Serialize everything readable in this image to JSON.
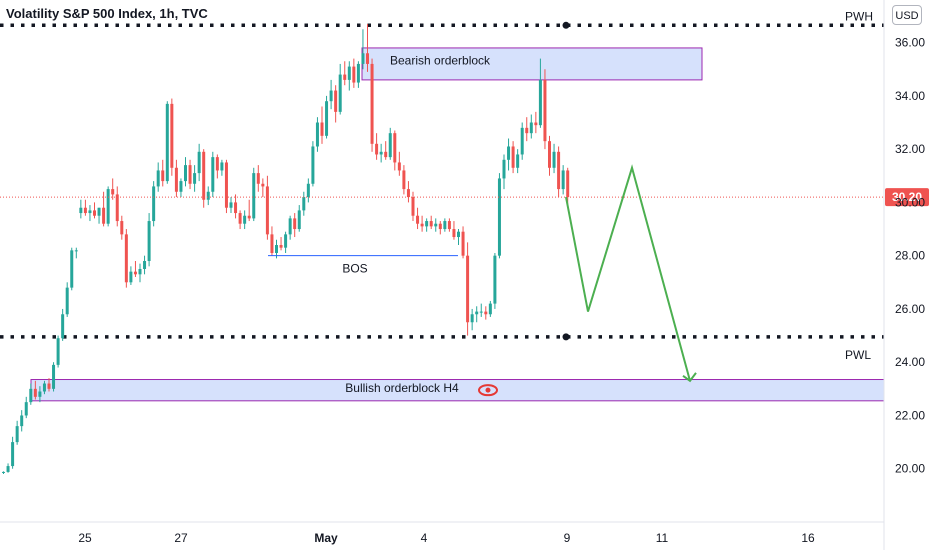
{
  "header": {
    "title": "Volatility S&P 500 Index, 1h, TVC",
    "currency": "USD"
  },
  "chart_data": {
    "type": "candlestick",
    "ylim": [
      18.0,
      37.6
    ],
    "y_ticks": [
      "20.00",
      "22.00",
      "24.00",
      "26.00",
      "28.00",
      "30.00",
      "32.00",
      "34.00",
      "36.00"
    ],
    "x_ticks": [
      {
        "label": "25",
        "bold": false
      },
      {
        "label": "27",
        "bold": false
      },
      {
        "label": "May",
        "bold": true
      },
      {
        "label": "4",
        "bold": false
      },
      {
        "label": "9",
        "bold": false
      },
      {
        "label": "11",
        "bold": false
      },
      {
        "label": "16",
        "bold": false
      }
    ],
    "last_price": 30.2,
    "last_price_label": "30.20",
    "levels": [
      {
        "label": "PWH",
        "value": 36.65
      },
      {
        "label": "PWL",
        "value": 24.95
      }
    ],
    "zones": [
      {
        "label": "Bearish orderblock",
        "top": 35.8,
        "bottom": 34.6
      },
      {
        "label": "Bullish orderblock H4",
        "top": 23.35,
        "bottom": 22.55
      }
    ],
    "bos": {
      "label": "BOS",
      "value": 28.0
    },
    "projection": [
      30.2,
      25.9,
      31.3,
      23.3
    ],
    "candles": [
      [
        19.85,
        19.9,
        19.8,
        19.88
      ],
      [
        19.88,
        20.2,
        19.85,
        20.1
      ],
      [
        20.1,
        21.2,
        20.0,
        21.0
      ],
      [
        21.0,
        21.8,
        20.9,
        21.6
      ],
      [
        21.6,
        22.2,
        21.4,
        22.0
      ],
      [
        22.0,
        22.7,
        21.9,
        22.5
      ],
      [
        22.5,
        23.2,
        22.4,
        23.0
      ],
      [
        23.0,
        23.3,
        22.6,
        22.7
      ],
      [
        22.7,
        23.1,
        22.5,
        22.9
      ],
      [
        22.9,
        23.3,
        22.8,
        23.2
      ],
      [
        23.2,
        23.4,
        22.9,
        23.0
      ],
      [
        23.0,
        24.0,
        22.9,
        23.9
      ],
      [
        23.9,
        25.0,
        23.8,
        24.9
      ],
      [
        24.9,
        26.0,
        24.8,
        25.8
      ],
      [
        25.8,
        27.0,
        25.7,
        26.8
      ],
      [
        26.8,
        28.3,
        26.7,
        28.2
      ],
      [
        28.2,
        28.3,
        27.9,
        28.2
      ],
      [
        29.6,
        30.1,
        29.4,
        29.8
      ],
      [
        29.8,
        30.1,
        29.5,
        29.6
      ],
      [
        29.6,
        29.9,
        29.3,
        29.7
      ],
      [
        29.7,
        30.0,
        29.4,
        29.5
      ],
      [
        29.5,
        29.8,
        29.2,
        29.8
      ],
      [
        29.8,
        30.4,
        29.1,
        29.2
      ],
      [
        29.2,
        30.6,
        29.1,
        30.5
      ],
      [
        30.5,
        30.9,
        30.1,
        30.3
      ],
      [
        30.3,
        30.6,
        29.1,
        29.3
      ],
      [
        29.3,
        29.5,
        28.6,
        28.8
      ],
      [
        28.8,
        29.0,
        26.8,
        27.0
      ],
      [
        27.0,
        27.6,
        26.9,
        27.4
      ],
      [
        27.4,
        27.8,
        27.2,
        27.3
      ],
      [
        27.3,
        27.7,
        27.0,
        27.5
      ],
      [
        27.5,
        28.0,
        27.3,
        27.8
      ],
      [
        27.8,
        29.6,
        27.6,
        29.3
      ],
      [
        29.3,
        30.8,
        29.1,
        30.6
      ],
      [
        30.6,
        31.5,
        30.4,
        31.2
      ],
      [
        31.2,
        31.6,
        30.6,
        30.8
      ],
      [
        30.8,
        33.8,
        30.7,
        33.7
      ],
      [
        33.7,
        33.9,
        31.0,
        31.3
      ],
      [
        31.3,
        31.6,
        30.2,
        30.4
      ],
      [
        30.4,
        30.9,
        30.2,
        30.8
      ],
      [
        30.8,
        31.7,
        30.6,
        31.4
      ],
      [
        31.4,
        31.6,
        30.5,
        30.7
      ],
      [
        30.7,
        31.4,
        30.4,
        31.1
      ],
      [
        31.1,
        32.2,
        30.8,
        31.9
      ],
      [
        31.9,
        32.0,
        29.8,
        30.1
      ],
      [
        30.1,
        30.6,
        29.9,
        30.4
      ],
      [
        30.4,
        31.9,
        30.2,
        31.7
      ],
      [
        31.7,
        31.8,
        30.9,
        31.2
      ],
      [
        31.2,
        31.6,
        31.0,
        31.5
      ],
      [
        31.5,
        31.6,
        29.6,
        29.8
      ],
      [
        29.8,
        30.2,
        29.6,
        30.0
      ],
      [
        30.0,
        30.3,
        29.4,
        29.6
      ],
      [
        29.6,
        29.7,
        29.0,
        29.2
      ],
      [
        29.2,
        29.7,
        29.0,
        29.5
      ],
      [
        29.5,
        30.1,
        29.3,
        29.4
      ],
      [
        29.4,
        31.3,
        29.3,
        31.1
      ],
      [
        31.1,
        31.4,
        30.4,
        30.7
      ],
      [
        30.7,
        30.9,
        30.2,
        30.6
      ],
      [
        30.6,
        31.0,
        28.6,
        28.8
      ],
      [
        28.8,
        29.1,
        28.0,
        28.1
      ],
      [
        28.1,
        28.6,
        27.9,
        28.4
      ],
      [
        28.4,
        28.7,
        28.2,
        28.3
      ],
      [
        28.3,
        28.9,
        28.1,
        28.8
      ],
      [
        28.8,
        29.5,
        28.6,
        29.4
      ],
      [
        29.4,
        29.6,
        28.7,
        29.0
      ],
      [
        29.0,
        29.9,
        28.9,
        29.7
      ],
      [
        29.7,
        30.4,
        29.5,
        30.2
      ],
      [
        30.2,
        30.9,
        30.0,
        30.7
      ],
      [
        30.7,
        32.3,
        30.6,
        32.1
      ],
      [
        32.1,
        33.2,
        31.9,
        33.0
      ],
      [
        33.0,
        33.6,
        32.2,
        32.5
      ],
      [
        32.5,
        34.0,
        32.4,
        33.8
      ],
      [
        33.8,
        34.6,
        33.5,
        34.2
      ],
      [
        34.2,
        34.4,
        33.0,
        33.4
      ],
      [
        33.4,
        35.2,
        33.3,
        34.8
      ],
      [
        34.8,
        35.3,
        34.4,
        34.6
      ],
      [
        34.6,
        35.3,
        34.2,
        35.1
      ],
      [
        35.1,
        35.4,
        34.3,
        34.5
      ],
      [
        34.5,
        35.3,
        34.3,
        35.2
      ],
      [
        35.2,
        36.5,
        35.0,
        35.6
      ],
      [
        35.6,
        36.7,
        34.9,
        35.2
      ],
      [
        35.2,
        35.4,
        31.9,
        32.2
      ],
      [
        32.2,
        32.6,
        31.6,
        31.8
      ],
      [
        31.8,
        32.2,
        31.5,
        31.9
      ],
      [
        31.9,
        32.3,
        31.6,
        31.7
      ],
      [
        31.7,
        32.8,
        31.6,
        32.6
      ],
      [
        32.6,
        32.7,
        31.2,
        31.5
      ],
      [
        31.5,
        31.9,
        31.0,
        31.2
      ],
      [
        31.2,
        31.4,
        30.3,
        30.5
      ],
      [
        30.5,
        30.8,
        30.0,
        30.2
      ],
      [
        30.2,
        30.4,
        29.3,
        29.5
      ],
      [
        29.5,
        29.8,
        29.0,
        29.2
      ],
      [
        29.2,
        29.5,
        28.9,
        29.1
      ],
      [
        29.1,
        29.4,
        28.9,
        29.3
      ],
      [
        29.3,
        29.5,
        29.0,
        29.1
      ],
      [
        29.1,
        29.4,
        28.9,
        29.2
      ],
      [
        29.2,
        29.3,
        28.8,
        29.0
      ],
      [
        29.0,
        29.4,
        28.9,
        29.3
      ],
      [
        29.3,
        29.4,
        28.9,
        29.0
      ],
      [
        29.0,
        29.3,
        28.6,
        28.7
      ],
      [
        28.7,
        29.0,
        28.4,
        28.9
      ],
      [
        28.9,
        29.1,
        27.9,
        28.0
      ],
      [
        28.0,
        28.5,
        25.0,
        25.5
      ],
      [
        25.5,
        26.0,
        25.2,
        25.8
      ],
      [
        25.8,
        26.1,
        25.5,
        25.9
      ],
      [
        25.9,
        26.2,
        25.7,
        25.9
      ],
      [
        25.9,
        26.1,
        25.6,
        25.8
      ],
      [
        25.8,
        26.3,
        25.7,
        26.2
      ],
      [
        26.2,
        28.1,
        26.0,
        28.0
      ],
      [
        28.0,
        31.1,
        27.9,
        30.9
      ],
      [
        30.9,
        31.8,
        30.5,
        31.6
      ],
      [
        31.6,
        32.4,
        31.2,
        32.1
      ],
      [
        32.1,
        32.3,
        31.1,
        31.3
      ],
      [
        31.3,
        32.0,
        31.1,
        31.8
      ],
      [
        31.8,
        33.0,
        31.6,
        32.8
      ],
      [
        32.8,
        33.2,
        32.3,
        32.6
      ],
      [
        32.6,
        33.3,
        32.4,
        33.0
      ],
      [
        33.0,
        33.4,
        32.6,
        32.9
      ],
      [
        32.9,
        35.4,
        32.8,
        34.6
      ],
      [
        34.6,
        35.0,
        32.0,
        32.3
      ],
      [
        32.3,
        32.5,
        31.0,
        31.3
      ],
      [
        31.3,
        32.2,
        31.1,
        31.9
      ],
      [
        31.9,
        32.1,
        30.2,
        30.5
      ],
      [
        30.5,
        31.4,
        30.3,
        31.2
      ],
      [
        31.2,
        31.3,
        29.8,
        30.2
      ]
    ]
  }
}
